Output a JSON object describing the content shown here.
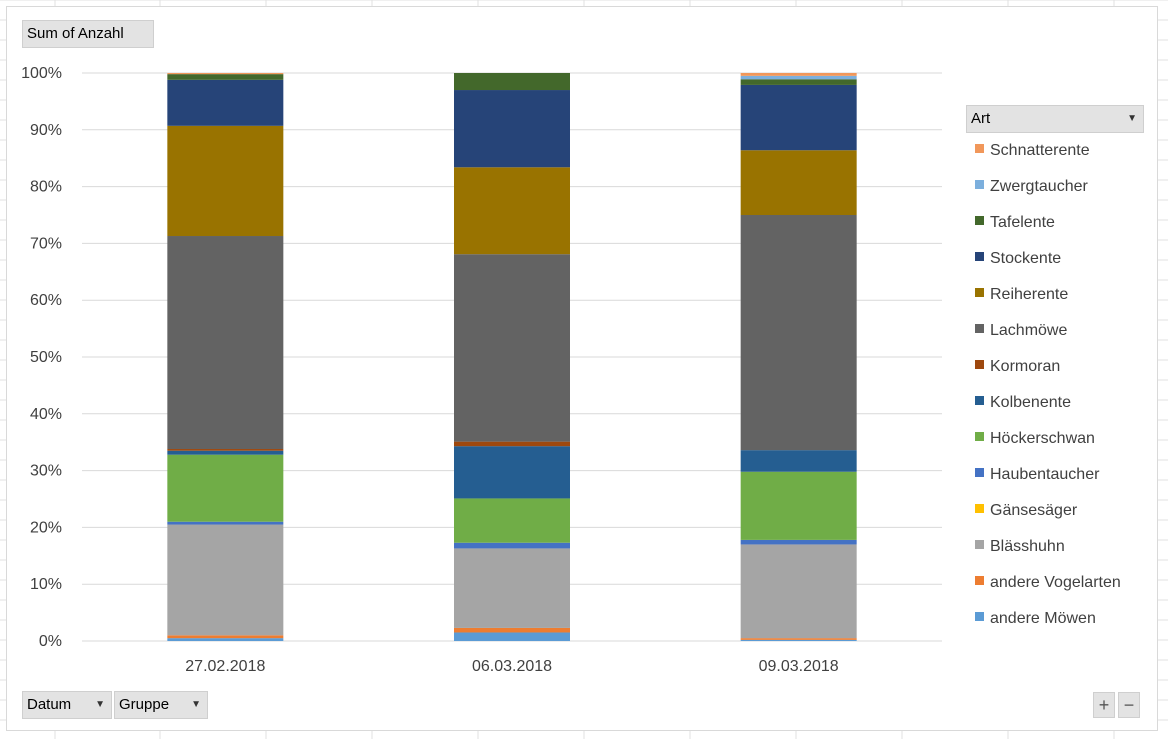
{
  "field_buttons": {
    "values_label": "Sum of Anzahl",
    "axis_field_1": "Datum",
    "axis_field_2": "Gruppe",
    "legend_field": "Art"
  },
  "zoom": {
    "plus": "+",
    "minus": "−"
  },
  "chart_data": {
    "type": "bar",
    "stacked": "percent",
    "categories": [
      "27.02.2018",
      "06.03.2018",
      "09.03.2018"
    ],
    "yticks": [
      "0%",
      "10%",
      "20%",
      "30%",
      "40%",
      "50%",
      "60%",
      "70%",
      "80%",
      "90%",
      "100%"
    ],
    "ylim": [
      0,
      100
    ],
    "grid": true,
    "legend_position": "right",
    "series": [
      {
        "name": "andere Möwen",
        "color": "#5b9bd5",
        "values": [
          0.5,
          1.5,
          0.2
        ]
      },
      {
        "name": "andere Vogelarten",
        "color": "#ed7d31",
        "values": [
          0.5,
          0.8,
          0.3
        ]
      },
      {
        "name": "Blässhuhn",
        "color": "#a5a5a5",
        "values": [
          19.5,
          14.0,
          16.5
        ]
      },
      {
        "name": "Gänsesäger",
        "color": "#ffc000",
        "values": [
          0.0,
          0.0,
          0.0
        ]
      },
      {
        "name": "Haubentaucher",
        "color": "#4472c4",
        "values": [
          0.5,
          1.0,
          0.8
        ]
      },
      {
        "name": "Höckerschwan",
        "color": "#70ad47",
        "values": [
          11.8,
          7.8,
          12.0
        ]
      },
      {
        "name": "Kolbenente",
        "color": "#255e91",
        "values": [
          0.7,
          9.2,
          3.8
        ]
      },
      {
        "name": "Kormoran",
        "color": "#9e480e",
        "values": [
          0.3,
          0.8,
          0.0
        ]
      },
      {
        "name": "Lachmöwe",
        "color": "#636363",
        "values": [
          37.5,
          33.0,
          41.4
        ]
      },
      {
        "name": "Reiherente",
        "color": "#997300",
        "values": [
          19.4,
          15.3,
          11.4
        ]
      },
      {
        "name": "Stockente",
        "color": "#264478",
        "values": [
          8.1,
          13.6,
          11.5
        ]
      },
      {
        "name": "Tafelente",
        "color": "#43682b",
        "values": [
          1.0,
          3.0,
          1.0
        ]
      },
      {
        "name": "Zwergtaucher",
        "color": "#7cafdd",
        "values": [
          0.0,
          0.0,
          0.6
        ]
      },
      {
        "name": "Schnatterente",
        "color": "#f1975a",
        "values": [
          0.2,
          0.0,
          0.5
        ]
      }
    ]
  }
}
